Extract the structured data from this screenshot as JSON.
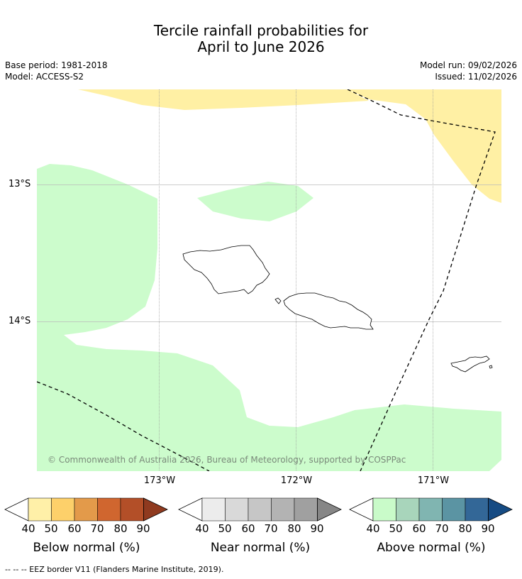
{
  "header": {
    "title_line1": "Tercile rainfall probabilities for",
    "title_line2": "April to June 2026",
    "base_period": "Base period: 1981-2018",
    "model": "Model: ACCESS-S2",
    "model_run": "Model run: 09/02/2026",
    "issued": "Issued: 11/02/2026"
  },
  "map": {
    "lat_labels": [
      "13°S",
      "14°S"
    ],
    "lon_labels": [
      "173°W",
      "172°W",
      "171°W"
    ],
    "copyright": "© Commonwealth of Australia 2026, Bureau of Meteorology, supported by COSPPac",
    "region_categories": {
      "yellow": "Below normal 40-50%",
      "green": "Above normal 40-50%"
    }
  },
  "colorbars": [
    {
      "title": "Below normal (%)",
      "ticks": [
        "40",
        "50",
        "60",
        "70",
        "80",
        "90"
      ],
      "colors": [
        "#fff0a8",
        "#fdd06a",
        "#e39a4a",
        "#d0662f",
        "#b34f28",
        "#8f3a1f"
      ]
    },
    {
      "title": "Near normal (%)",
      "ticks": [
        "40",
        "50",
        "60",
        "70",
        "80",
        "90"
      ],
      "colors": [
        "#ececec",
        "#d9d9d9",
        "#c6c6c6",
        "#b3b3b3",
        "#a0a0a0",
        "#868686"
      ]
    },
    {
      "title": "Above normal (%)",
      "ticks": [
        "40",
        "50",
        "60",
        "70",
        "80",
        "90"
      ],
      "colors": [
        "#c9fbc9",
        "#a8d5bb",
        "#80b5b1",
        "#5b94a3",
        "#336797",
        "#164b83"
      ]
    }
  ],
  "footnote": "--  --  -- EEZ border V11 (Flanders Marine Institute, 2019)."
}
